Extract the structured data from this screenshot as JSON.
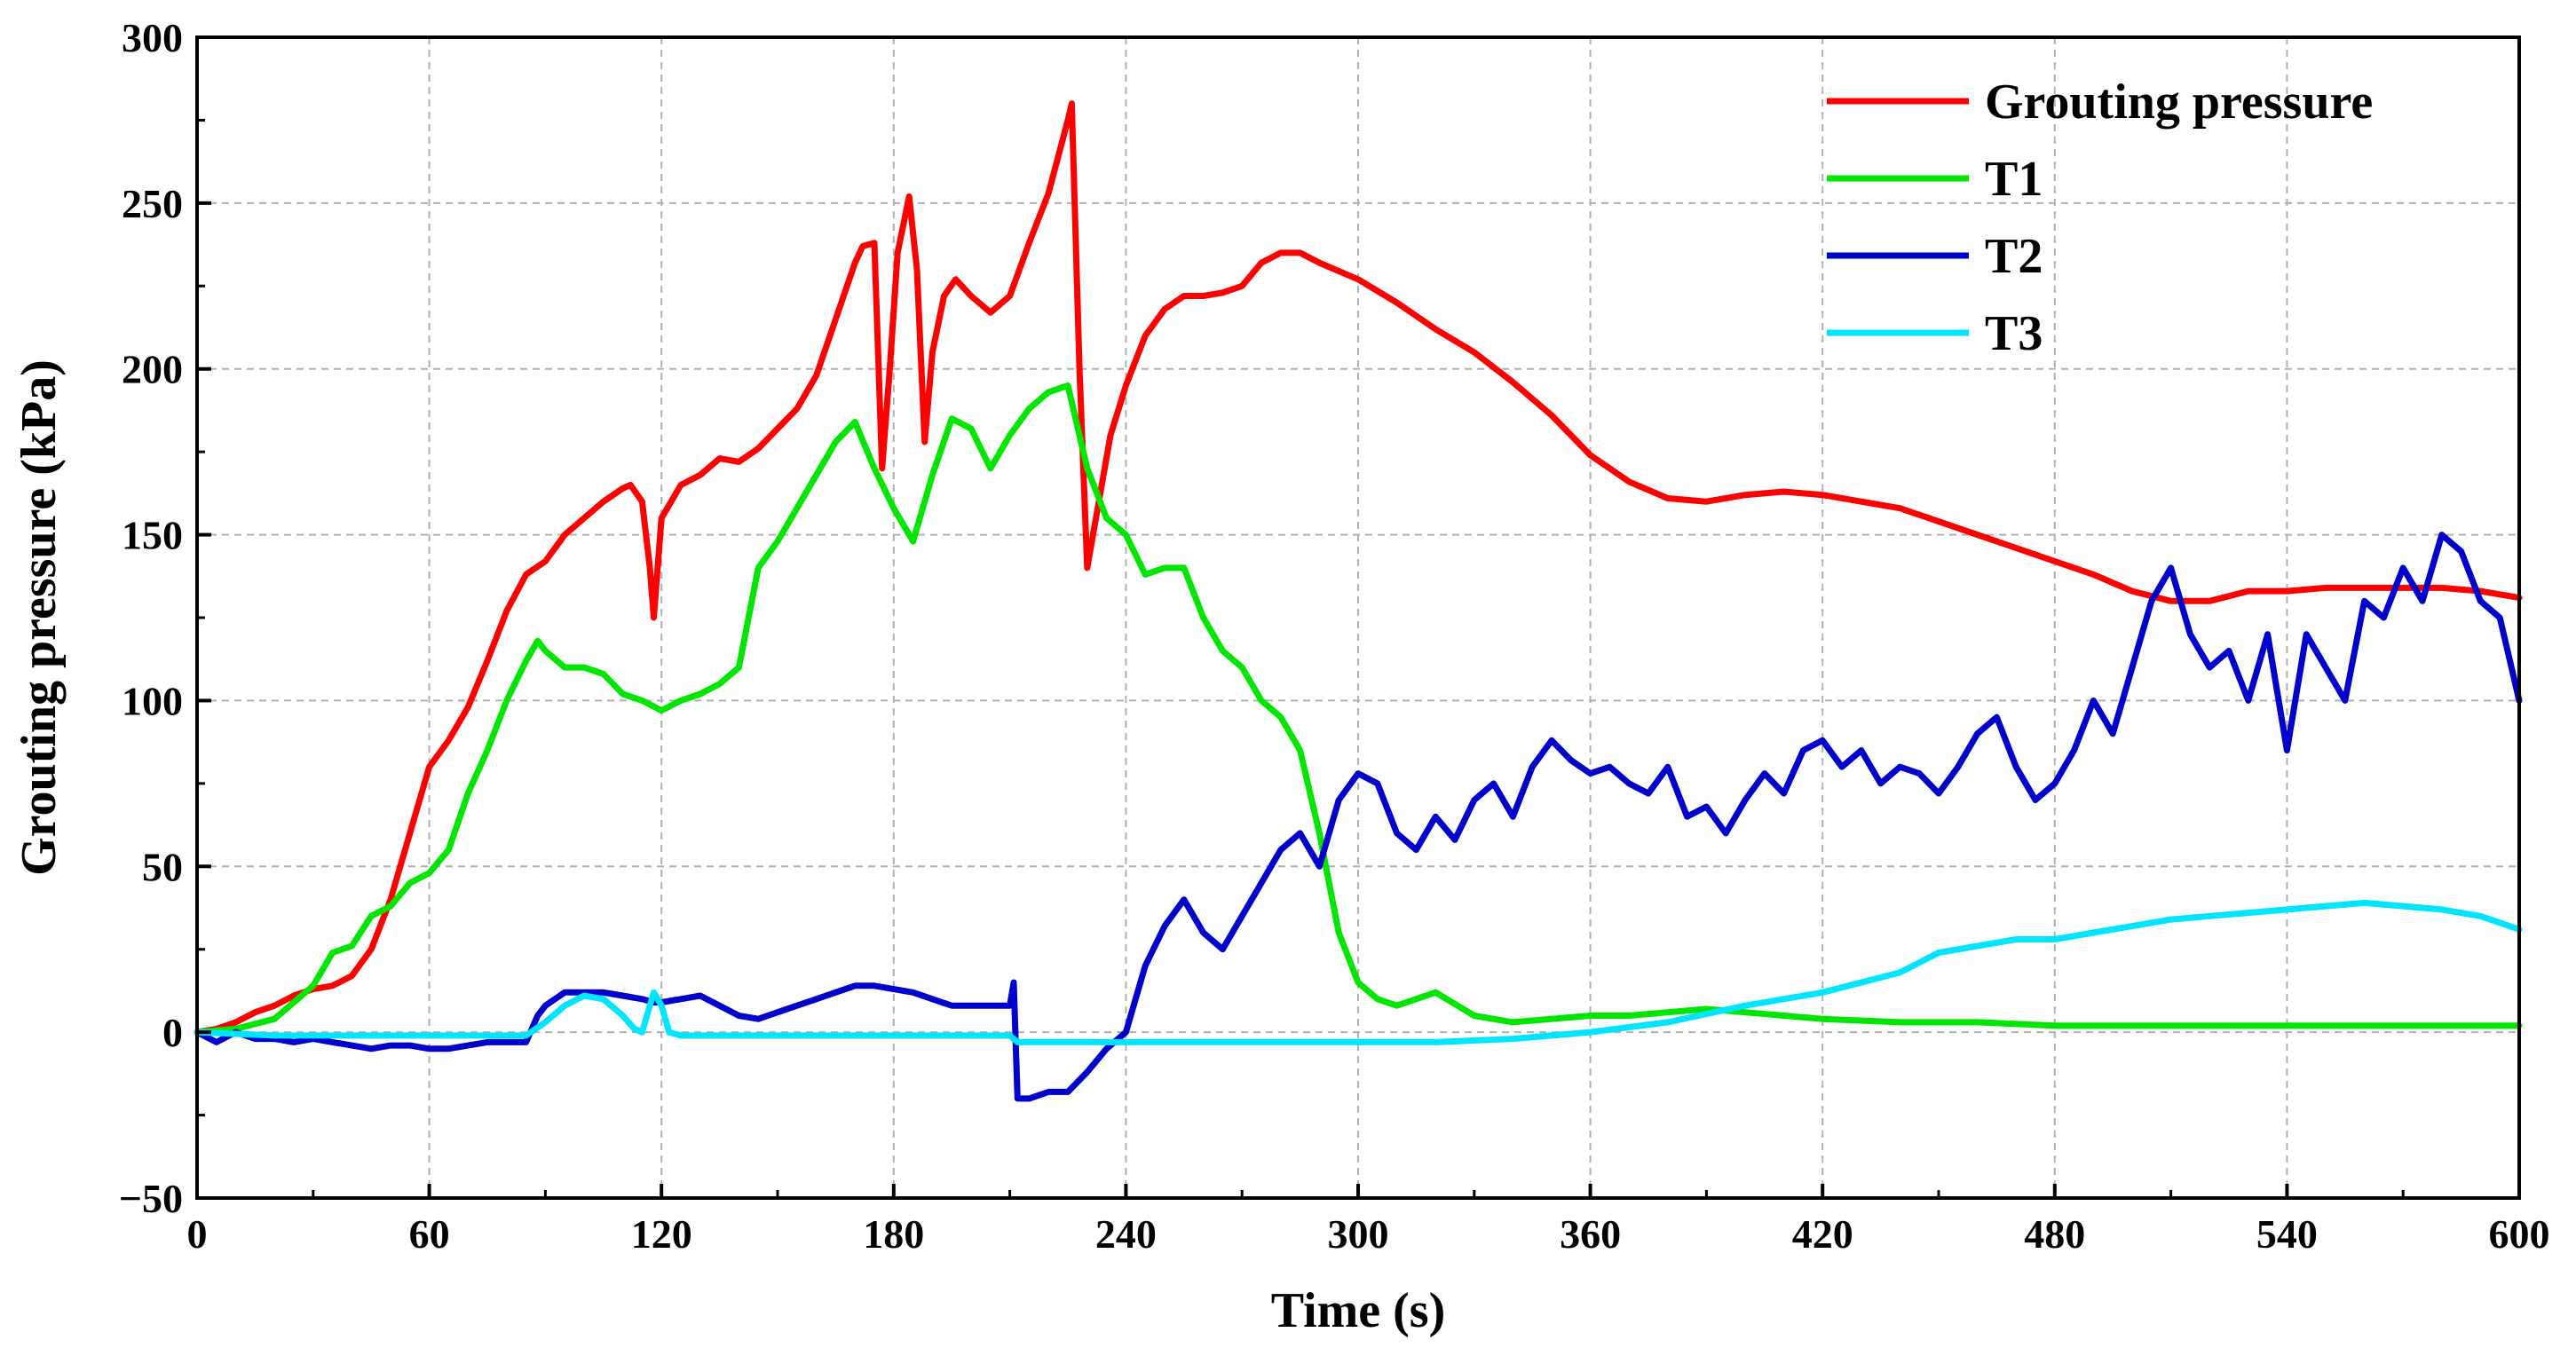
{
  "chart_data": {
    "type": "line",
    "xlabel": "Time (s)",
    "ylabel": "Grouting pressure (kPa)",
    "xlim": [
      0,
      600
    ],
    "ylim": [
      -50,
      300
    ],
    "xticks": [
      0,
      60,
      120,
      180,
      240,
      300,
      360,
      420,
      480,
      540,
      600
    ],
    "yticks": [
      -50,
      0,
      50,
      100,
      150,
      200,
      250,
      300
    ],
    "grid": true,
    "legend_position": "top-right",
    "series": [
      {
        "name": "Grouting pressure",
        "color": "#ff0000",
        "x": [
          0,
          5,
          10,
          15,
          20,
          25,
          30,
          35,
          40,
          45,
          50,
          55,
          60,
          65,
          70,
          75,
          80,
          85,
          90,
          95,
          100,
          105,
          110,
          112,
          115,
          117,
          118,
          120,
          125,
          130,
          135,
          140,
          145,
          150,
          155,
          160,
          165,
          170,
          172,
          175,
          177,
          179,
          181,
          184,
          186,
          188,
          190,
          193,
          196,
          200,
          205,
          210,
          215,
          220,
          225,
          226,
          228,
          230,
          233,
          236,
          240,
          245,
          250,
          255,
          260,
          265,
          270,
          275,
          280,
          285,
          290,
          300,
          310,
          320,
          330,
          340,
          350,
          360,
          370,
          380,
          390,
          400,
          410,
          420,
          430,
          440,
          450,
          460,
          470,
          480,
          490,
          500,
          510,
          520,
          530,
          540,
          550,
          560,
          570,
          580,
          590,
          600
        ],
        "y": [
          0,
          1,
          3,
          6,
          8,
          11,
          13,
          14,
          17,
          25,
          40,
          60,
          80,
          88,
          98,
          112,
          127,
          138,
          142,
          150,
          155,
          160,
          164,
          165,
          160,
          140,
          125,
          155,
          165,
          168,
          173,
          172,
          176,
          182,
          188,
          198,
          215,
          232,
          237,
          238,
          170,
          200,
          235,
          252,
          230,
          178,
          205,
          222,
          227,
          222,
          217,
          222,
          238,
          253,
          275,
          280,
          200,
          140,
          160,
          180,
          195,
          210,
          218,
          222,
          222,
          223,
          225,
          232,
          235,
          235,
          232,
          227,
          220,
          212,
          205,
          196,
          186,
          174,
          166,
          161,
          160,
          162,
          163,
          162,
          160,
          158,
          154,
          150,
          146,
          142,
          138,
          133,
          130,
          130,
          133,
          133,
          134,
          134,
          134,
          134,
          133,
          131
        ]
      },
      {
        "name": "T1",
        "color": "#00e600",
        "x": [
          0,
          10,
          20,
          25,
          30,
          35,
          40,
          45,
          50,
          55,
          60,
          65,
          70,
          75,
          80,
          85,
          88,
          90,
          95,
          100,
          105,
          110,
          115,
          120,
          125,
          130,
          135,
          140,
          145,
          150,
          155,
          160,
          165,
          170,
          175,
          180,
          185,
          190,
          195,
          200,
          205,
          210,
          215,
          220,
          225,
          230,
          235,
          240,
          245,
          250,
          255,
          260,
          265,
          270,
          275,
          280,
          285,
          290,
          295,
          300,
          305,
          310,
          315,
          320,
          330,
          340,
          350,
          360,
          370,
          380,
          390,
          400,
          420,
          440,
          460,
          480,
          500,
          520,
          540,
          560,
          580,
          600
        ],
        "y": [
          0,
          1,
          4,
          9,
          14,
          24,
          26,
          35,
          38,
          45,
          48,
          55,
          72,
          85,
          100,
          112,
          118,
          115,
          110,
          110,
          108,
          102,
          100,
          97,
          100,
          102,
          105,
          110,
          140,
          148,
          158,
          168,
          178,
          184,
          170,
          158,
          148,
          168,
          185,
          182,
          170,
          180,
          188,
          193,
          195,
          170,
          155,
          150,
          138,
          140,
          140,
          125,
          115,
          110,
          100,
          95,
          85,
          60,
          30,
          15,
          10,
          8,
          10,
          12,
          5,
          3,
          4,
          5,
          5,
          6,
          7,
          6,
          4,
          3,
          3,
          2,
          2,
          2,
          2,
          2,
          2,
          2
        ]
      },
      {
        "name": "T2",
        "color": "#0000cd",
        "x": [
          0,
          5,
          10,
          15,
          20,
          25,
          30,
          35,
          40,
          45,
          50,
          55,
          60,
          65,
          70,
          75,
          80,
          85,
          88,
          90,
          95,
          100,
          105,
          110,
          115,
          118,
          120,
          125,
          130,
          135,
          140,
          145,
          150,
          155,
          160,
          165,
          170,
          175,
          180,
          185,
          190,
          195,
          200,
          205,
          210,
          211,
          212,
          215,
          220,
          225,
          230,
          235,
          240,
          245,
          250,
          255,
          260,
          265,
          270,
          275,
          280,
          285,
          290,
          295,
          300,
          305,
          310,
          315,
          320,
          325,
          330,
          335,
          340,
          345,
          350,
          355,
          360,
          365,
          370,
          375,
          380,
          385,
          390,
          395,
          400,
          405,
          410,
          415,
          420,
          425,
          430,
          435,
          440,
          445,
          450,
          455,
          460,
          465,
          470,
          475,
          480,
          485,
          490,
          495,
          500,
          505,
          510,
          515,
          520,
          525,
          530,
          535,
          540,
          545,
          550,
          555,
          560,
          565,
          570,
          575,
          580,
          585,
          590,
          595,
          600
        ],
        "y": [
          0,
          -3,
          0,
          -2,
          -2,
          -3,
          -2,
          -3,
          -4,
          -5,
          -4,
          -4,
          -5,
          -5,
          -4,
          -3,
          -3,
          -3,
          5,
          8,
          12,
          12,
          12,
          11,
          10,
          9,
          9,
          10,
          11,
          8,
          5,
          4,
          6,
          8,
          10,
          12,
          14,
          14,
          13,
          12,
          10,
          8,
          8,
          8,
          8,
          15,
          -20,
          -20,
          -18,
          -18,
          -12,
          -5,
          0,
          20,
          32,
          40,
          30,
          25,
          35,
          45,
          55,
          60,
          50,
          70,
          78,
          75,
          60,
          55,
          65,
          58,
          70,
          75,
          65,
          80,
          88,
          82,
          78,
          80,
          75,
          72,
          80,
          65,
          68,
          60,
          70,
          78,
          72,
          85,
          88,
          80,
          85,
          75,
          80,
          78,
          72,
          80,
          90,
          95,
          80,
          70,
          75,
          85,
          100,
          90,
          110,
          130,
          140,
          120,
          110,
          115,
          100,
          120,
          85,
          120,
          110,
          100,
          130,
          125,
          140,
          130,
          150,
          145,
          130,
          125,
          100
        ]
      },
      {
        "name": "T3",
        "color": "#00e5ff",
        "x": [
          0,
          20,
          40,
          60,
          80,
          85,
          90,
          95,
          100,
          105,
          110,
          113,
          115,
          117,
          118,
          120,
          122,
          125,
          130,
          150,
          180,
          200,
          210,
          212,
          240,
          260,
          280,
          300,
          320,
          340,
          360,
          380,
          400,
          420,
          440,
          450,
          460,
          470,
          480,
          490,
          500,
          510,
          520,
          530,
          540,
          550,
          560,
          570,
          580,
          590,
          600
        ],
        "y": [
          0,
          -1,
          -1,
          -1,
          -1,
          -1,
          3,
          8,
          11,
          10,
          5,
          1,
          0,
          8,
          12,
          8,
          0,
          -1,
          -1,
          -1,
          -1,
          -1,
          -1,
          -3,
          -3,
          -3,
          -3,
          -3,
          -3,
          -2,
          0,
          3,
          8,
          12,
          18,
          24,
          26,
          28,
          28,
          30,
          32,
          34,
          35,
          36,
          37,
          38,
          39,
          38,
          37,
          35,
          31
        ]
      }
    ]
  }
}
